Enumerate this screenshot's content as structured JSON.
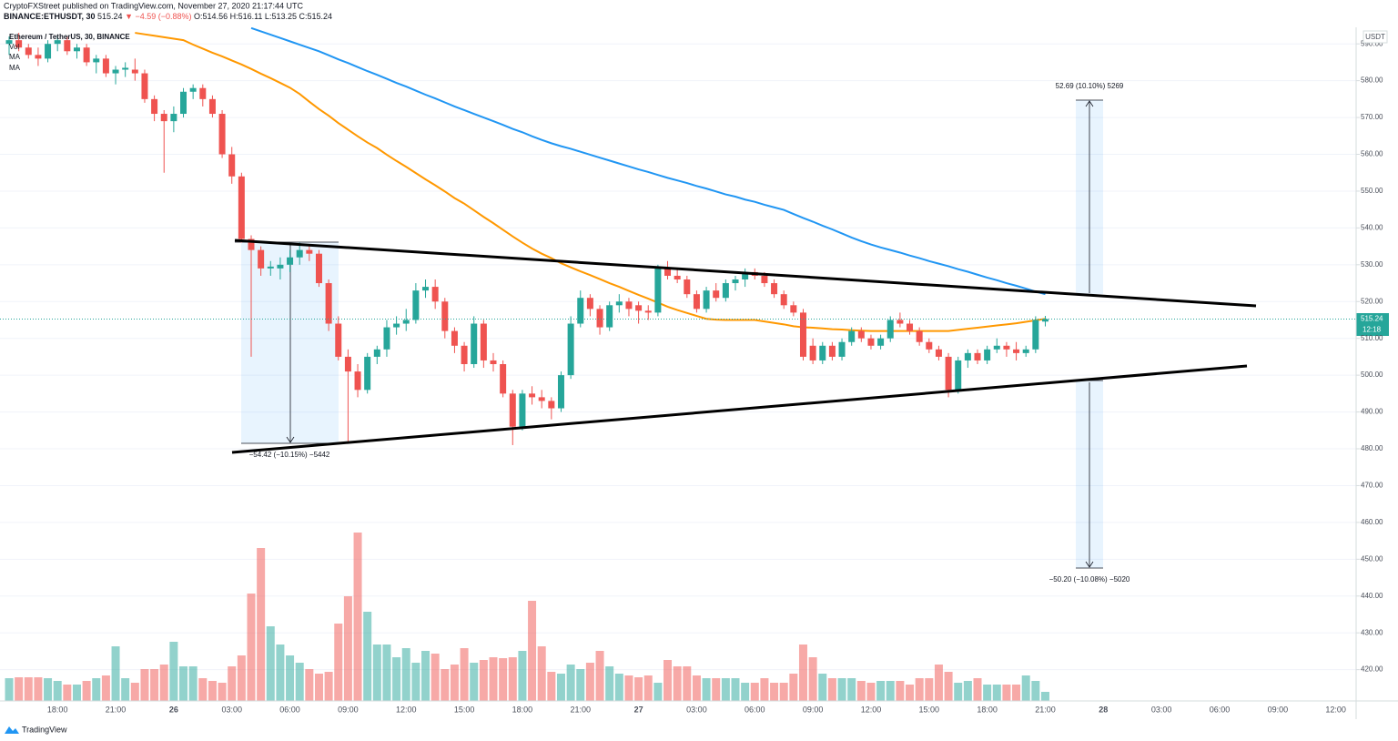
{
  "header": {
    "publisher": "CryptoFXStreet published on TradingView.com, November 27, 2020 21:17:44 UTC",
    "symbol": "BINANCE:ETHUSDT, 30",
    "last": "515.24",
    "change": "▼ −4.59 (−0.88%)",
    "ohlc": "O:514.56 H:516.11 L:513.25 C:515.24"
  },
  "footer": {
    "brand": "TradingView"
  },
  "chart_data": {
    "type": "candlestick",
    "title": "Ethereum / TetherUS, 30, BINANCE",
    "volume_label": "Vol",
    "currency_label": "USDT",
    "last_price_label": "515.24",
    "countdown": "12:18",
    "up_color": "#26a69a",
    "down_color": "#ef5350",
    "grid": true,
    "open": [
      590,
      591,
      589,
      587,
      586,
      590,
      591,
      588,
      589,
      585,
      586,
      582,
      583,
      583,
      582,
      575,
      571,
      569,
      571,
      577,
      578,
      575,
      571,
      560,
      554,
      537,
      534,
      529,
      529,
      530,
      532,
      534,
      533,
      525,
      514,
      505,
      501,
      496,
      505,
      507,
      513,
      514,
      515,
      523,
      524,
      520,
      512,
      508,
      503,
      514,
      504,
      503,
      495,
      486,
      495,
      494,
      493,
      491,
      500,
      514,
      521,
      518,
      513,
      519,
      520,
      519,
      517.5,
      517,
      529,
      527,
      526,
      522,
      518,
      523,
      521,
      525,
      526,
      528,
      527,
      525,
      522,
      519,
      517,
      508,
      504,
      508,
      505,
      509,
      512,
      510,
      508,
      510,
      515,
      514,
      512,
      509,
      507,
      505,
      496,
      504,
      506,
      504,
      507,
      508,
      507,
      506,
      507,
      514.56
    ],
    "high": [
      592,
      593,
      590,
      589,
      591,
      592,
      592,
      590,
      590,
      587,
      587,
      584,
      585,
      586,
      583,
      576,
      572,
      573,
      578,
      579,
      579,
      576,
      572,
      562,
      555,
      538,
      535,
      531,
      532,
      534,
      536,
      535,
      534,
      526,
      516,
      507,
      503,
      506,
      508,
      515,
      516,
      518,
      525,
      526,
      526,
      521,
      513,
      509,
      516,
      515,
      506,
      504,
      496,
      496,
      497,
      496,
      494,
      501,
      516,
      523,
      522,
      519,
      520,
      522,
      521,
      520,
      519,
      530,
      531,
      529,
      527,
      523,
      524,
      525,
      526,
      527,
      529,
      529,
      528,
      526,
      523,
      520,
      518,
      510,
      509,
      509,
      510,
      513,
      513,
      511,
      511,
      516,
      517,
      515,
      513,
      510,
      508,
      506,
      505,
      507,
      507,
      508,
      510,
      509,
      509,
      508,
      516,
      516.11
    ],
    "low": [
      587,
      588,
      586,
      584,
      585,
      588,
      587,
      586,
      584,
      582,
      581,
      579,
      581,
      580,
      574,
      569,
      555,
      566,
      570,
      575,
      573,
      570,
      559,
      552,
      536,
      505,
      527,
      527,
      526,
      528,
      530,
      531,
      524,
      512,
      504,
      482,
      494,
      495,
      503,
      505,
      511,
      512,
      514,
      521,
      518,
      510,
      506,
      501,
      502,
      502,
      501,
      494,
      481,
      485,
      492,
      491,
      488,
      490,
      499,
      513,
      516,
      511,
      512,
      517,
      516,
      514,
      515,
      516,
      526,
      525,
      521,
      517,
      517,
      520,
      520,
      523,
      524,
      526,
      524,
      521,
      518,
      516,
      504,
      503,
      503,
      504,
      504,
      508,
      509,
      507,
      507,
      509,
      513,
      511,
      508,
      506,
      504,
      494,
      495,
      502,
      503,
      503,
      506,
      505,
      504,
      505,
      506,
      513.25
    ],
    "close": [
      591,
      589,
      587,
      586,
      590,
      591,
      588,
      589,
      585,
      586,
      582,
      583,
      583.5,
      582,
      575,
      571,
      569,
      571,
      577,
      578,
      575,
      571,
      560,
      554,
      537,
      534,
      529,
      529.5,
      530,
      532,
      534,
      533,
      525,
      514,
      505,
      501,
      496,
      505,
      507,
      513,
      514,
      515,
      523,
      524,
      520,
      512,
      508,
      503,
      514,
      504,
      503,
      495,
      486,
      495,
      494,
      493,
      491,
      500,
      514,
      521,
      518,
      513,
      519,
      520,
      518,
      517.5,
      517,
      529,
      527,
      526,
      522,
      518,
      523,
      521,
      525,
      526,
      528,
      527,
      525,
      522,
      519,
      517,
      505,
      504,
      508,
      505,
      509,
      512,
      510,
      508,
      510,
      515,
      514,
      512,
      509,
      507,
      505,
      496,
      504,
      506,
      504,
      507,
      508,
      507,
      506,
      507,
      515,
      515.24
    ],
    "volume": [
      25,
      26,
      26,
      26,
      25,
      22,
      18,
      18,
      22,
      25,
      28,
      60,
      25,
      20,
      35,
      35,
      40,
      65,
      38,
      38,
      25,
      22,
      20,
      38,
      50,
      118,
      168,
      82,
      62,
      50,
      42,
      35,
      30,
      32,
      85,
      115,
      185,
      98,
      62,
      62,
      48,
      58,
      42,
      55,
      52,
      35,
      40,
      58,
      42,
      45,
      48,
      47,
      48,
      55,
      110,
      60,
      32,
      30,
      40,
      35,
      42,
      55,
      38,
      30,
      28,
      26,
      28,
      20,
      45,
      38,
      38,
      28,
      25,
      25,
      25,
      25,
      20,
      20,
      25,
      20,
      20,
      30,
      62,
      48,
      30,
      25,
      25,
      25,
      22,
      20,
      22,
      22,
      22,
      18,
      25,
      25,
      40,
      32,
      20,
      22,
      25,
      18,
      18,
      18,
      18,
      28,
      22,
      10
    ],
    "series": [
      {
        "name": "MA",
        "color": "#ff9800",
        "values": [
          null,
          null,
          null,
          null,
          null,
          null,
          null,
          null,
          null,
          null,
          null,
          null,
          null,
          593,
          592.6,
          592.2,
          591.8,
          591.4,
          591,
          589.8,
          588.7,
          587.6,
          586.6,
          585.5,
          584.4,
          583.2,
          581.9,
          580.7,
          579.4,
          578.1,
          576.4,
          574.3,
          572.3,
          570.5,
          568.5,
          566.7,
          564.9,
          563.2,
          561.7,
          559.9,
          558.2,
          556.6,
          554.9,
          553.2,
          551.6,
          549.9,
          548.1,
          546.6,
          544.8,
          543,
          541.3,
          539.5,
          537.7,
          536,
          534.4,
          533,
          531.8,
          530.4,
          529.3,
          528.2,
          527.2,
          526.1,
          525,
          524,
          522.9,
          521.8,
          520.8,
          519.7,
          518.6,
          517.7,
          516.9,
          516.1,
          515.3,
          515.1,
          515,
          515,
          515,
          515,
          514.6,
          514.2,
          513.8,
          513.3,
          513,
          512.9,
          512.7,
          512.5,
          512.4,
          512.2,
          512.1,
          512,
          512,
          512,
          512,
          512,
          512,
          512,
          512,
          512,
          512.3,
          512.6,
          512.9,
          513.2,
          513.5,
          513.8,
          514.1,
          514.5,
          514.9,
          515.3
        ]
      },
      {
        "name": "MA",
        "color": "#2196f3",
        "values": [
          null,
          null,
          null,
          null,
          null,
          null,
          null,
          null,
          null,
          null,
          null,
          null,
          null,
          null,
          null,
          null,
          null,
          null,
          null,
          null,
          null,
          null,
          null,
          null,
          null,
          594.3,
          593.4,
          592.5,
          591.6,
          590.7,
          589.8,
          588.9,
          588,
          586.9,
          585.8,
          584.8,
          583.7,
          582.6,
          581.6,
          580.5,
          579.4,
          578.4,
          577.3,
          576.2,
          575.2,
          574.1,
          573,
          572,
          571,
          570,
          569,
          568,
          566.9,
          566,
          564.9,
          563.9,
          563,
          562.2,
          561.5,
          560.7,
          559.9,
          559.1,
          558.3,
          557.5,
          556.7,
          555.9,
          555.2,
          554.4,
          553.6,
          552.9,
          552.2,
          551.4,
          550.7,
          549.9,
          549.1,
          548.5,
          547.7,
          547.1,
          546.3,
          545.6,
          544.9,
          543.8,
          542.7,
          541.7,
          540.6,
          539.6,
          538.5,
          537.4,
          536.4,
          535.5,
          534.7,
          534,
          533.3,
          532.5,
          531.8,
          531,
          530.3,
          529.6,
          528.8,
          528.1,
          527.3,
          526.5,
          525.8,
          525,
          524.3,
          523.5,
          522.7,
          522
        ]
      }
    ],
    "ylim": [
      411.5,
      594.5
    ],
    "yticks": [
      {
        "value": 590,
        "label": "590.00"
      },
      {
        "value": 580,
        "label": "580.00"
      },
      {
        "value": 570,
        "label": "570.00"
      },
      {
        "value": 560,
        "label": "560.00"
      },
      {
        "value": 550,
        "label": "550.00"
      },
      {
        "value": 540,
        "label": "540.00"
      },
      {
        "value": 530,
        "label": "530.00"
      },
      {
        "value": 520,
        "label": "520.00"
      },
      {
        "value": 510,
        "label": "510.00"
      },
      {
        "value": 500,
        "label": "500.00"
      },
      {
        "value": 490,
        "label": "490.00"
      },
      {
        "value": 480,
        "label": "480.00"
      },
      {
        "value": 470,
        "label": "470.00"
      },
      {
        "value": 460,
        "label": "460.00"
      },
      {
        "value": 450,
        "label": "450.00"
      },
      {
        "value": 440,
        "label": "440.00"
      },
      {
        "value": 430,
        "label": "430.00"
      },
      {
        "value": 420,
        "label": "420.00"
      }
    ],
    "xtick_labels": [
      "18:00",
      "21:00",
      "26",
      "03:00",
      "06:00",
      "09:00",
      "12:00",
      "15:00",
      "18:00",
      "21:00",
      "27",
      "03:00",
      "06:00",
      "09:00",
      "12:00",
      "15:00",
      "18:00",
      "21:00",
      "28",
      "03:00",
      "06:00",
      "09:00",
      "12:00"
    ],
    "annotations": [
      "−54.42 (−10.15%) −5442",
      "52.69 (10.10%) 5269",
      "−50.20 (−10.08%) −5020"
    ]
  }
}
